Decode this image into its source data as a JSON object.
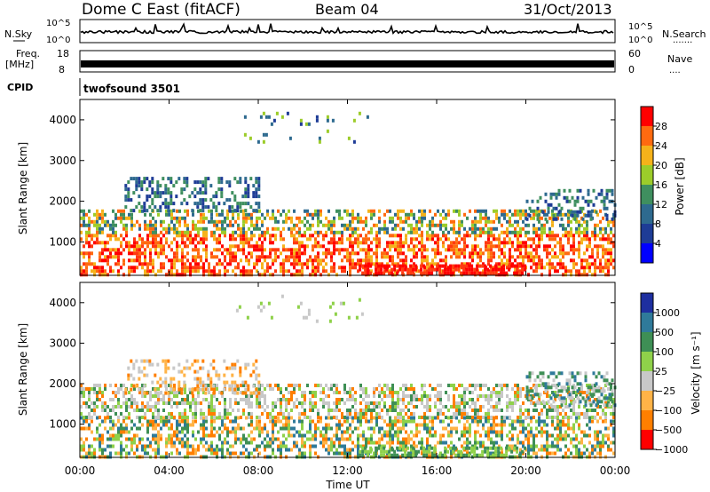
{
  "header": {
    "station": "Dome C East (fitACF)",
    "beam": "Beam 04",
    "date": "31/Oct/2013"
  },
  "summary_panels": {
    "nsky": {
      "left_label": "N.Sky",
      "right_label": "N.Search",
      "top_tick": "10^5",
      "bottom_tick": "10^0"
    },
    "freq": {
      "left_label_1": "Freq.",
      "left_label_2": "[MHz]",
      "left_top": "18",
      "left_bottom": "8",
      "right_label": "Nave",
      "right_top": "60",
      "right_bottom": "0"
    },
    "cpid": {
      "label": "CPID",
      "value": "twofsound 3501"
    }
  },
  "chart_data": [
    {
      "type": "heatmap",
      "name": "power-panel",
      "ylabel": "Slant Range [km]",
      "xlabel": "Time UT",
      "x_ticks": [
        "00:00",
        "04:00",
        "08:00",
        "12:00",
        "16:00",
        "20:00",
        "00:00"
      ],
      "y_ticks": [
        1000,
        2000,
        3000,
        4000
      ],
      "ylim": [
        180,
        4500
      ],
      "xlim_hours": [
        0,
        24
      ],
      "colorbar": {
        "label": "Power [dB]",
        "ticks": [
          "4",
          "8",
          "12",
          "16",
          "20",
          "24",
          "28"
        ],
        "colors": [
          "#0000ff",
          "#1e3c96",
          "#2e6a8f",
          "#3f8f5f",
          "#9ccc2a",
          "#f5b21a",
          "#ff6a10",
          "#ff0000"
        ]
      }
    },
    {
      "type": "heatmap",
      "name": "velocity-panel",
      "ylabel": "Slant Range [km]",
      "xlabel": "Time UT",
      "x_ticks": [
        "00:00",
        "04:00",
        "08:00",
        "12:00",
        "16:00",
        "20:00",
        "00:00"
      ],
      "y_ticks": [
        1000,
        2000,
        3000,
        4000
      ],
      "ylim": [
        180,
        4500
      ],
      "xlim_hours": [
        0,
        24
      ],
      "colorbar": {
        "label": "Velocity [m s⁻¹]",
        "ticks": [
          "1000",
          "500",
          "100",
          "25",
          "−25",
          "−100",
          "−500",
          "−1000"
        ],
        "colors": [
          "#1e2fa0",
          "#2f7a9a",
          "#3e8f55",
          "#8fd14a",
          "#c8c8c8",
          "#ffb347",
          "#ff7f00",
          "#ff0000"
        ]
      }
    }
  ]
}
